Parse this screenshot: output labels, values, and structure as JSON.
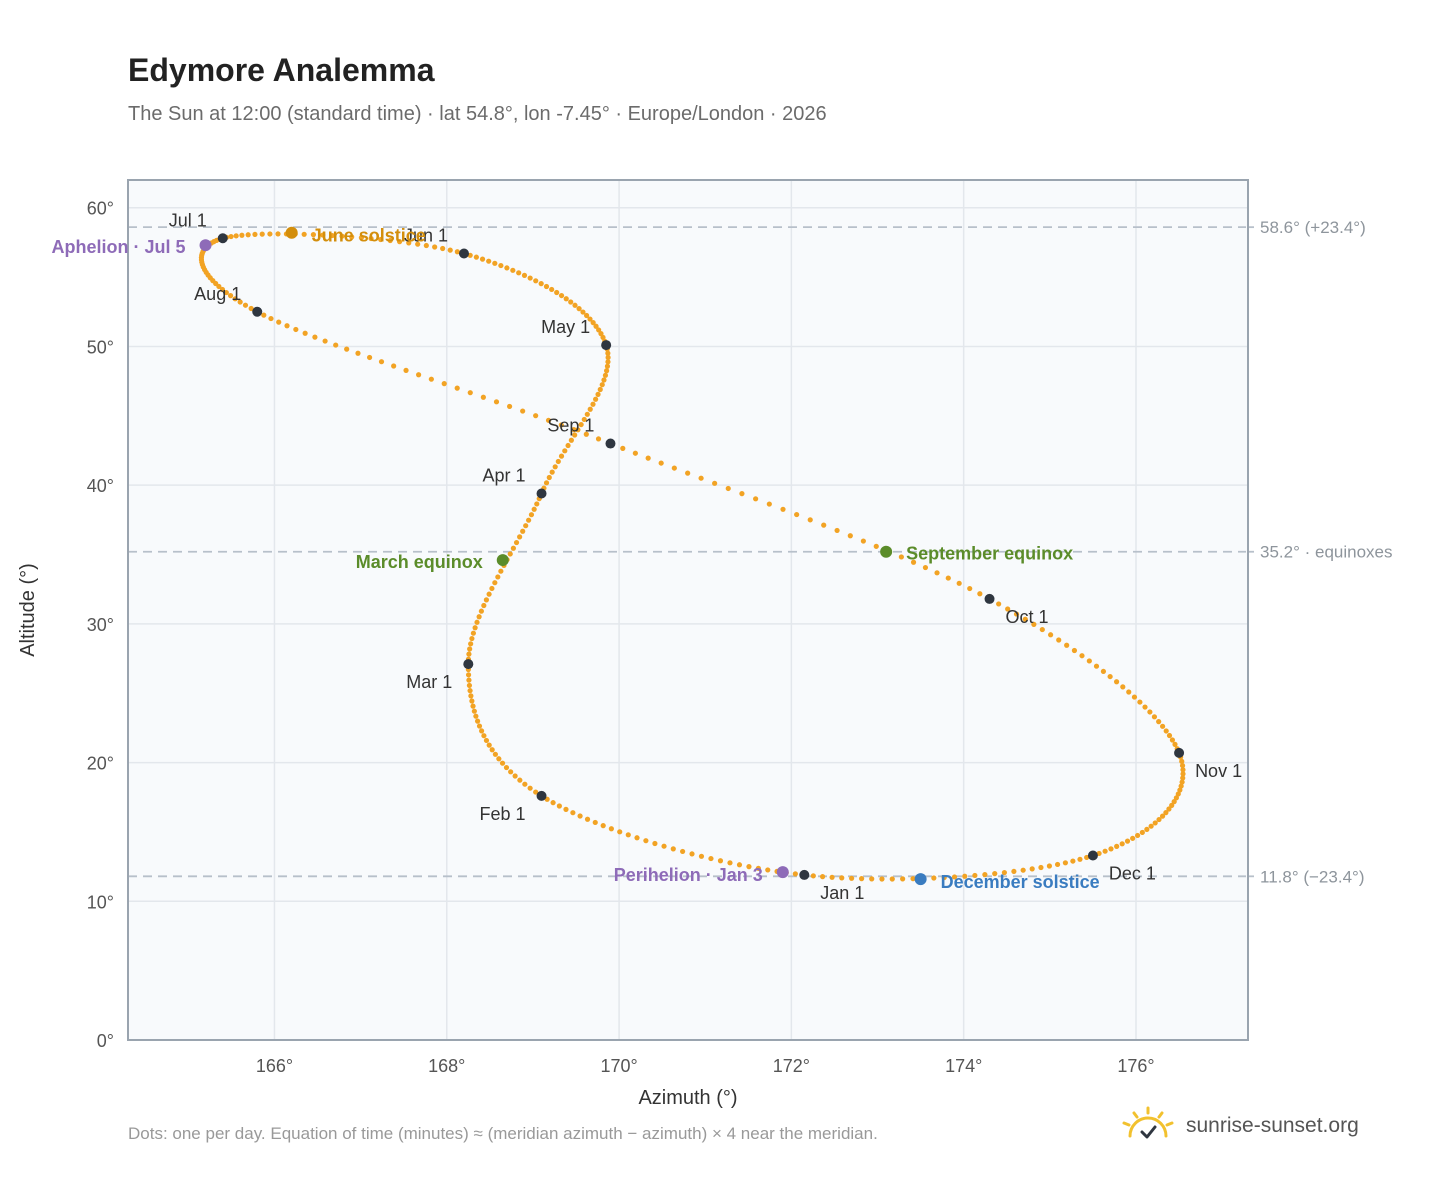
{
  "title": "Edymore Analemma",
  "subtitle": "The Sun at 12:00 (standard time) · lat 54.8°, lon -7.45° · Europe/London · 2026",
  "footnote": "Dots: one per day. Equation of time (minutes) ≈ (meridian azimuth − azimuth) × 4 near the meridian.",
  "brand": {
    "name": "sunrise-sunset.org",
    "icon": "sun-logo-icon"
  },
  "colors": {
    "curve": "#F2A324",
    "month_marker": "#2F3640",
    "equinox": "#5B8C2A",
    "june_solstice": "#D38E0C",
    "december_solstice": "#3A7CC0",
    "perihelion_aphelion": "#8E6BB8",
    "grid": "#E3E7EC",
    "reference_line": "#B7C0CA",
    "plot_background": "#F8FAFC"
  },
  "chart_data": {
    "type": "scatter",
    "xlabel": "Azimuth (°)",
    "ylabel": "Altitude (°)",
    "xlim": [
      164.3,
      177.3
    ],
    "ylim": [
      0,
      62
    ],
    "x_ticks": [
      166,
      168,
      170,
      172,
      174,
      176
    ],
    "x_tick_labels": [
      "166°",
      "168°",
      "170°",
      "172°",
      "174°",
      "176°"
    ],
    "y_ticks": [
      0,
      10,
      20,
      30,
      40,
      50,
      60
    ],
    "y_tick_labels": [
      "0°",
      "10°",
      "20°",
      "30°",
      "40°",
      "50°",
      "60°"
    ],
    "grid": true,
    "reference_lines": [
      {
        "y": 58.6,
        "label": "58.6° (+23.4°)"
      },
      {
        "y": 35.2,
        "label": "35.2° · equinoxes"
      },
      {
        "y": 11.8,
        "label": "11.8° (−23.4°)"
      }
    ],
    "month_markers": [
      {
        "label": "Jan 1",
        "az": 172.15,
        "alt": 11.9
      },
      {
        "label": "Feb 1",
        "az": 169.1,
        "alt": 17.6
      },
      {
        "label": "Mar 1",
        "az": 168.25,
        "alt": 27.1
      },
      {
        "label": "Apr 1",
        "az": 169.1,
        "alt": 39.4
      },
      {
        "label": "May 1",
        "az": 169.85,
        "alt": 50.1
      },
      {
        "label": "Jun 1",
        "az": 168.2,
        "alt": 56.7
      },
      {
        "label": "Jul 1",
        "az": 165.4,
        "alt": 57.8
      },
      {
        "label": "Aug 1",
        "az": 165.8,
        "alt": 52.5
      },
      {
        "label": "Sep 1",
        "az": 169.9,
        "alt": 43.0
      },
      {
        "label": "Oct 1",
        "az": 174.3,
        "alt": 31.8
      },
      {
        "label": "Nov 1",
        "az": 176.5,
        "alt": 20.7
      },
      {
        "label": "Dec 1",
        "az": 175.5,
        "alt": 13.3
      }
    ],
    "events": [
      {
        "label": "March equinox",
        "az": 168.65,
        "alt": 34.6,
        "kind": "equinox"
      },
      {
        "label": "June solstice",
        "az": 166.2,
        "alt": 58.2,
        "kind": "june_solstice"
      },
      {
        "label": "September equinox",
        "az": 173.1,
        "alt": 35.2,
        "kind": "equinox"
      },
      {
        "label": "December solstice",
        "az": 173.5,
        "alt": 11.6,
        "kind": "december_solstice"
      },
      {
        "label": "Perihelion · Jan 3",
        "az": 171.9,
        "alt": 12.1,
        "kind": "perihelion_aphelion"
      },
      {
        "label": "Aphelion · Jul 5",
        "az": 165.2,
        "alt": 57.3,
        "kind": "perihelion_aphelion"
      }
    ]
  }
}
